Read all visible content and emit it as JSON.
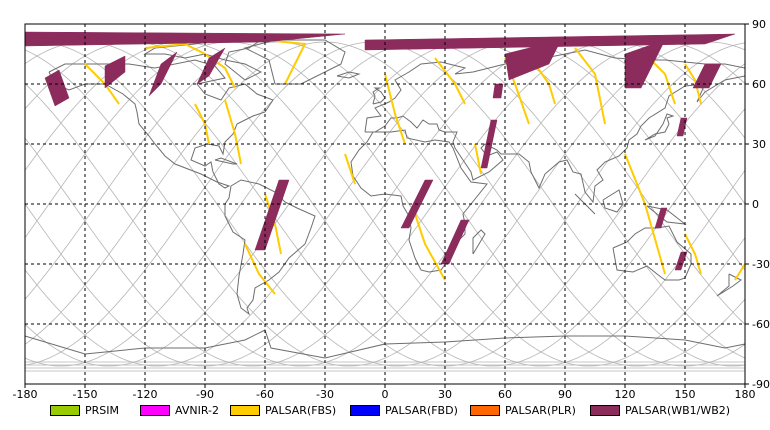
{
  "map": {
    "lon_range": [
      -180,
      180
    ],
    "lat_range": [
      -90,
      90
    ],
    "x_ticks": [
      "-180",
      "-150",
      "-120",
      "-90",
      "-60",
      "-30",
      "0",
      "30",
      "60",
      "90",
      "120",
      "150",
      "180"
    ],
    "y_ticks": [
      "90",
      "60",
      "30",
      "0",
      "-30",
      "-60",
      "-90"
    ],
    "grid": true,
    "grid_style": "dashed",
    "colors": {
      "coast": "#6e6e6e",
      "orbit": "#b4b4b4",
      "grid": "#000000",
      "wb": "#8c2c5c",
      "fbs": "#ffcc00"
    }
  },
  "legend": [
    {
      "label": "PRSIM",
      "color": "#99cc00"
    },
    {
      "label": "AVNIR-2",
      "color": "#ff00ff"
    },
    {
      "label": "PALSAR(FBS)",
      "color": "#ffcc00"
    },
    {
      "label": "PALSAR(FBD)",
      "color": "#0000ff"
    },
    {
      "label": "PALSAR(PLR)",
      "color": "#ff6600"
    },
    {
      "label": "PALSAR(WB1/WB2)",
      "color": "#8c2c5c"
    }
  ],
  "swaths_wb": [
    {
      "pts": [
        [
          -170,
          63
        ],
        [
          -163,
          67
        ],
        [
          -158,
          53
        ],
        [
          -165,
          49
        ]
      ]
    },
    {
      "pts": [
        [
          -140,
          69
        ],
        [
          -130,
          74
        ],
        [
          -130,
          66
        ],
        [
          -140,
          58
        ]
      ]
    },
    {
      "pts": [
        [
          -112,
          70
        ],
        [
          -104,
          76
        ],
        [
          -112,
          60
        ],
        [
          -118,
          54
        ]
      ]
    },
    {
      "pts": [
        [
          -88,
          73
        ],
        [
          -80,
          78
        ],
        [
          -88,
          64
        ],
        [
          -94,
          60
        ]
      ]
    },
    {
      "pts": [
        [
          -53,
          12
        ],
        [
          -48,
          12
        ],
        [
          -60,
          -23
        ],
        [
          -65,
          -23
        ]
      ]
    },
    {
      "pts": [
        [
          55,
          60
        ],
        [
          59,
          60
        ],
        [
          58,
          53
        ],
        [
          54,
          53
        ]
      ]
    },
    {
      "pts": [
        [
          53,
          42
        ],
        [
          56,
          42
        ],
        [
          51,
          18
        ],
        [
          48,
          18
        ]
      ]
    },
    {
      "pts": [
        [
          20,
          12
        ],
        [
          24,
          12
        ],
        [
          12,
          -12
        ],
        [
          8,
          -12
        ]
      ]
    },
    {
      "pts": [
        [
          38,
          -8
        ],
        [
          42,
          -8
        ],
        [
          32,
          -30
        ],
        [
          28,
          -30
        ]
      ]
    },
    {
      "pts": [
        [
          138,
          -2
        ],
        [
          141,
          -2
        ],
        [
          138,
          -12
        ],
        [
          135,
          -12
        ]
      ]
    },
    {
      "pts": [
        [
          148,
          -24
        ],
        [
          151,
          -24
        ],
        [
          148,
          -33
        ],
        [
          145,
          -33
        ]
      ]
    },
    {
      "pts": [
        [
          148,
          43
        ],
        [
          151,
          43
        ],
        [
          149,
          34
        ],
        [
          146,
          34
        ]
      ]
    },
    {
      "pts": [
        [
          160,
          70
        ],
        [
          168,
          70
        ],
        [
          162,
          58
        ],
        [
          154,
          58
        ]
      ]
    },
    {
      "pts": [
        [
          120,
          75
        ],
        [
          140,
          82
        ],
        [
          128,
          58
        ],
        [
          120,
          58
        ]
      ]
    },
    {
      "pts": [
        [
          60,
          75
        ],
        [
          88,
          82
        ],
        [
          82,
          70
        ],
        [
          62,
          62
        ]
      ]
    },
    {
      "pts": [
        [
          -180,
          86
        ],
        [
          -20,
          85
        ],
        [
          -60,
          81
        ],
        [
          -180,
          79
        ]
      ]
    },
    {
      "pts": [
        [
          -10,
          82
        ],
        [
          175,
          85
        ],
        [
          160,
          80
        ],
        [
          -10,
          77
        ]
      ]
    }
  ],
  "swaths_fbs": [
    {
      "pts": [
        [
          -120,
          78
        ],
        [
          -100,
          80
        ],
        [
          -90,
          75
        ],
        [
          -80,
          68
        ],
        [
          -75,
          58
        ]
      ]
    },
    {
      "pts": [
        [
          -60,
          82
        ],
        [
          -40,
          80
        ],
        [
          -50,
          60
        ]
      ]
    },
    {
      "pts": [
        [
          -150,
          70
        ],
        [
          -140,
          60
        ],
        [
          -133,
          50
        ]
      ]
    },
    {
      "pts": [
        [
          -95,
          50
        ],
        [
          -90,
          40
        ],
        [
          -88,
          30
        ]
      ]
    },
    {
      "pts": [
        [
          -80,
          52
        ],
        [
          -75,
          35
        ],
        [
          -72,
          20
        ]
      ]
    },
    {
      "pts": [
        [
          -60,
          5
        ],
        [
          -55,
          -10
        ],
        [
          -52,
          -25
        ]
      ]
    },
    {
      "pts": [
        [
          -70,
          -20
        ],
        [
          -63,
          -35
        ],
        [
          -55,
          -45
        ]
      ]
    },
    {
      "pts": [
        [
          -20,
          25
        ],
        [
          -15,
          10
        ]
      ]
    },
    {
      "pts": [
        [
          0,
          65
        ],
        [
          5,
          45
        ],
        [
          10,
          30
        ]
      ]
    },
    {
      "pts": [
        [
          25,
          73
        ],
        [
          35,
          60
        ],
        [
          40,
          50
        ]
      ]
    },
    {
      "pts": [
        [
          75,
          70
        ],
        [
          82,
          60
        ],
        [
          85,
          50
        ]
      ]
    },
    {
      "pts": [
        [
          60,
          73
        ],
        [
          65,
          60
        ],
        [
          72,
          40
        ]
      ]
    },
    {
      "pts": [
        [
          95,
          78
        ],
        [
          105,
          65
        ],
        [
          110,
          40
        ]
      ]
    },
    {
      "pts": [
        [
          130,
          75
        ],
        [
          140,
          65
        ],
        [
          145,
          50
        ]
      ]
    },
    {
      "pts": [
        [
          150,
          70
        ],
        [
          155,
          62
        ],
        [
          158,
          50
        ]
      ]
    },
    {
      "pts": [
        [
          120,
          25
        ],
        [
          130,
          0
        ],
        [
          140,
          -35
        ]
      ]
    },
    {
      "pts": [
        [
          150,
          -15
        ],
        [
          155,
          -25
        ],
        [
          158,
          -35
        ]
      ]
    },
    {
      "pts": [
        [
          15,
          -5
        ],
        [
          20,
          -20
        ],
        [
          30,
          -38
        ]
      ]
    },
    {
      "pts": [
        [
          45,
          30
        ],
        [
          48,
          15
        ]
      ]
    },
    {
      "pts": [
        [
          180,
          -30
        ],
        [
          175,
          -38
        ]
      ]
    }
  ]
}
